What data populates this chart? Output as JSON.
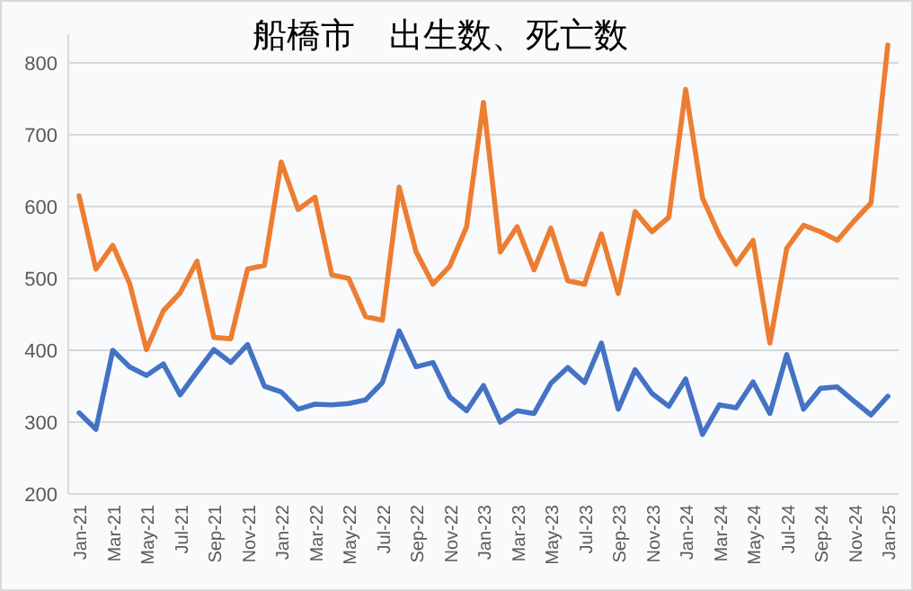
{
  "chart_data": {
    "type": "line",
    "title": "船橋市　出生数、死亡数",
    "categories": [
      "Jan-21",
      null,
      "Mar-21",
      null,
      "May-21",
      null,
      "Jul-21",
      null,
      "Sep-21",
      null,
      "Nov-21",
      null,
      "Jan-22",
      null,
      "Mar-22",
      null,
      "May-22",
      null,
      "Jul-22",
      null,
      "Sep-22",
      null,
      "Nov-22",
      null,
      "Jan-23",
      null,
      "Mar-23",
      null,
      "May-23",
      null,
      "Jul-23",
      null,
      "Sep-23",
      null,
      "Nov-23",
      null,
      "Jan-24",
      null,
      "Mar-24",
      null,
      "May-24",
      null,
      "Jul-24",
      null,
      "Sep-24",
      null,
      "Nov-24",
      null,
      "Jan-25"
    ],
    "series": [
      {
        "color": "#4472c4",
        "values": [
          313,
          290,
          400,
          377,
          365,
          381,
          338,
          370,
          401,
          383,
          408,
          350,
          342,
          318,
          325,
          324,
          326,
          331,
          355,
          427,
          377,
          383,
          335,
          316,
          351,
          300,
          316,
          312,
          354,
          376,
          355,
          410,
          318,
          373,
          340,
          322,
          360,
          283,
          324,
          320,
          356,
          312,
          394,
          318,
          347,
          349,
          329,
          310,
          336
        ]
      },
      {
        "color": "#ed7d31",
        "values": [
          615,
          513,
          546,
          493,
          401,
          455,
          480,
          524,
          418,
          416,
          513,
          518,
          662,
          596,
          613,
          505,
          500,
          447,
          442,
          627,
          537,
          492,
          517,
          572,
          745,
          537,
          572,
          512,
          570,
          497,
          492,
          562,
          479,
          593,
          565,
          585,
          763,
          612,
          560,
          520,
          553,
          410,
          542,
          574,
          565,
          553,
          580,
          605,
          825
        ]
      }
    ],
    "ylim": [
      200,
      840
    ],
    "yticks": [
      200,
      300,
      400,
      500,
      600,
      700,
      800
    ],
    "grid": "y",
    "marker": "none",
    "line_style": "solid"
  }
}
